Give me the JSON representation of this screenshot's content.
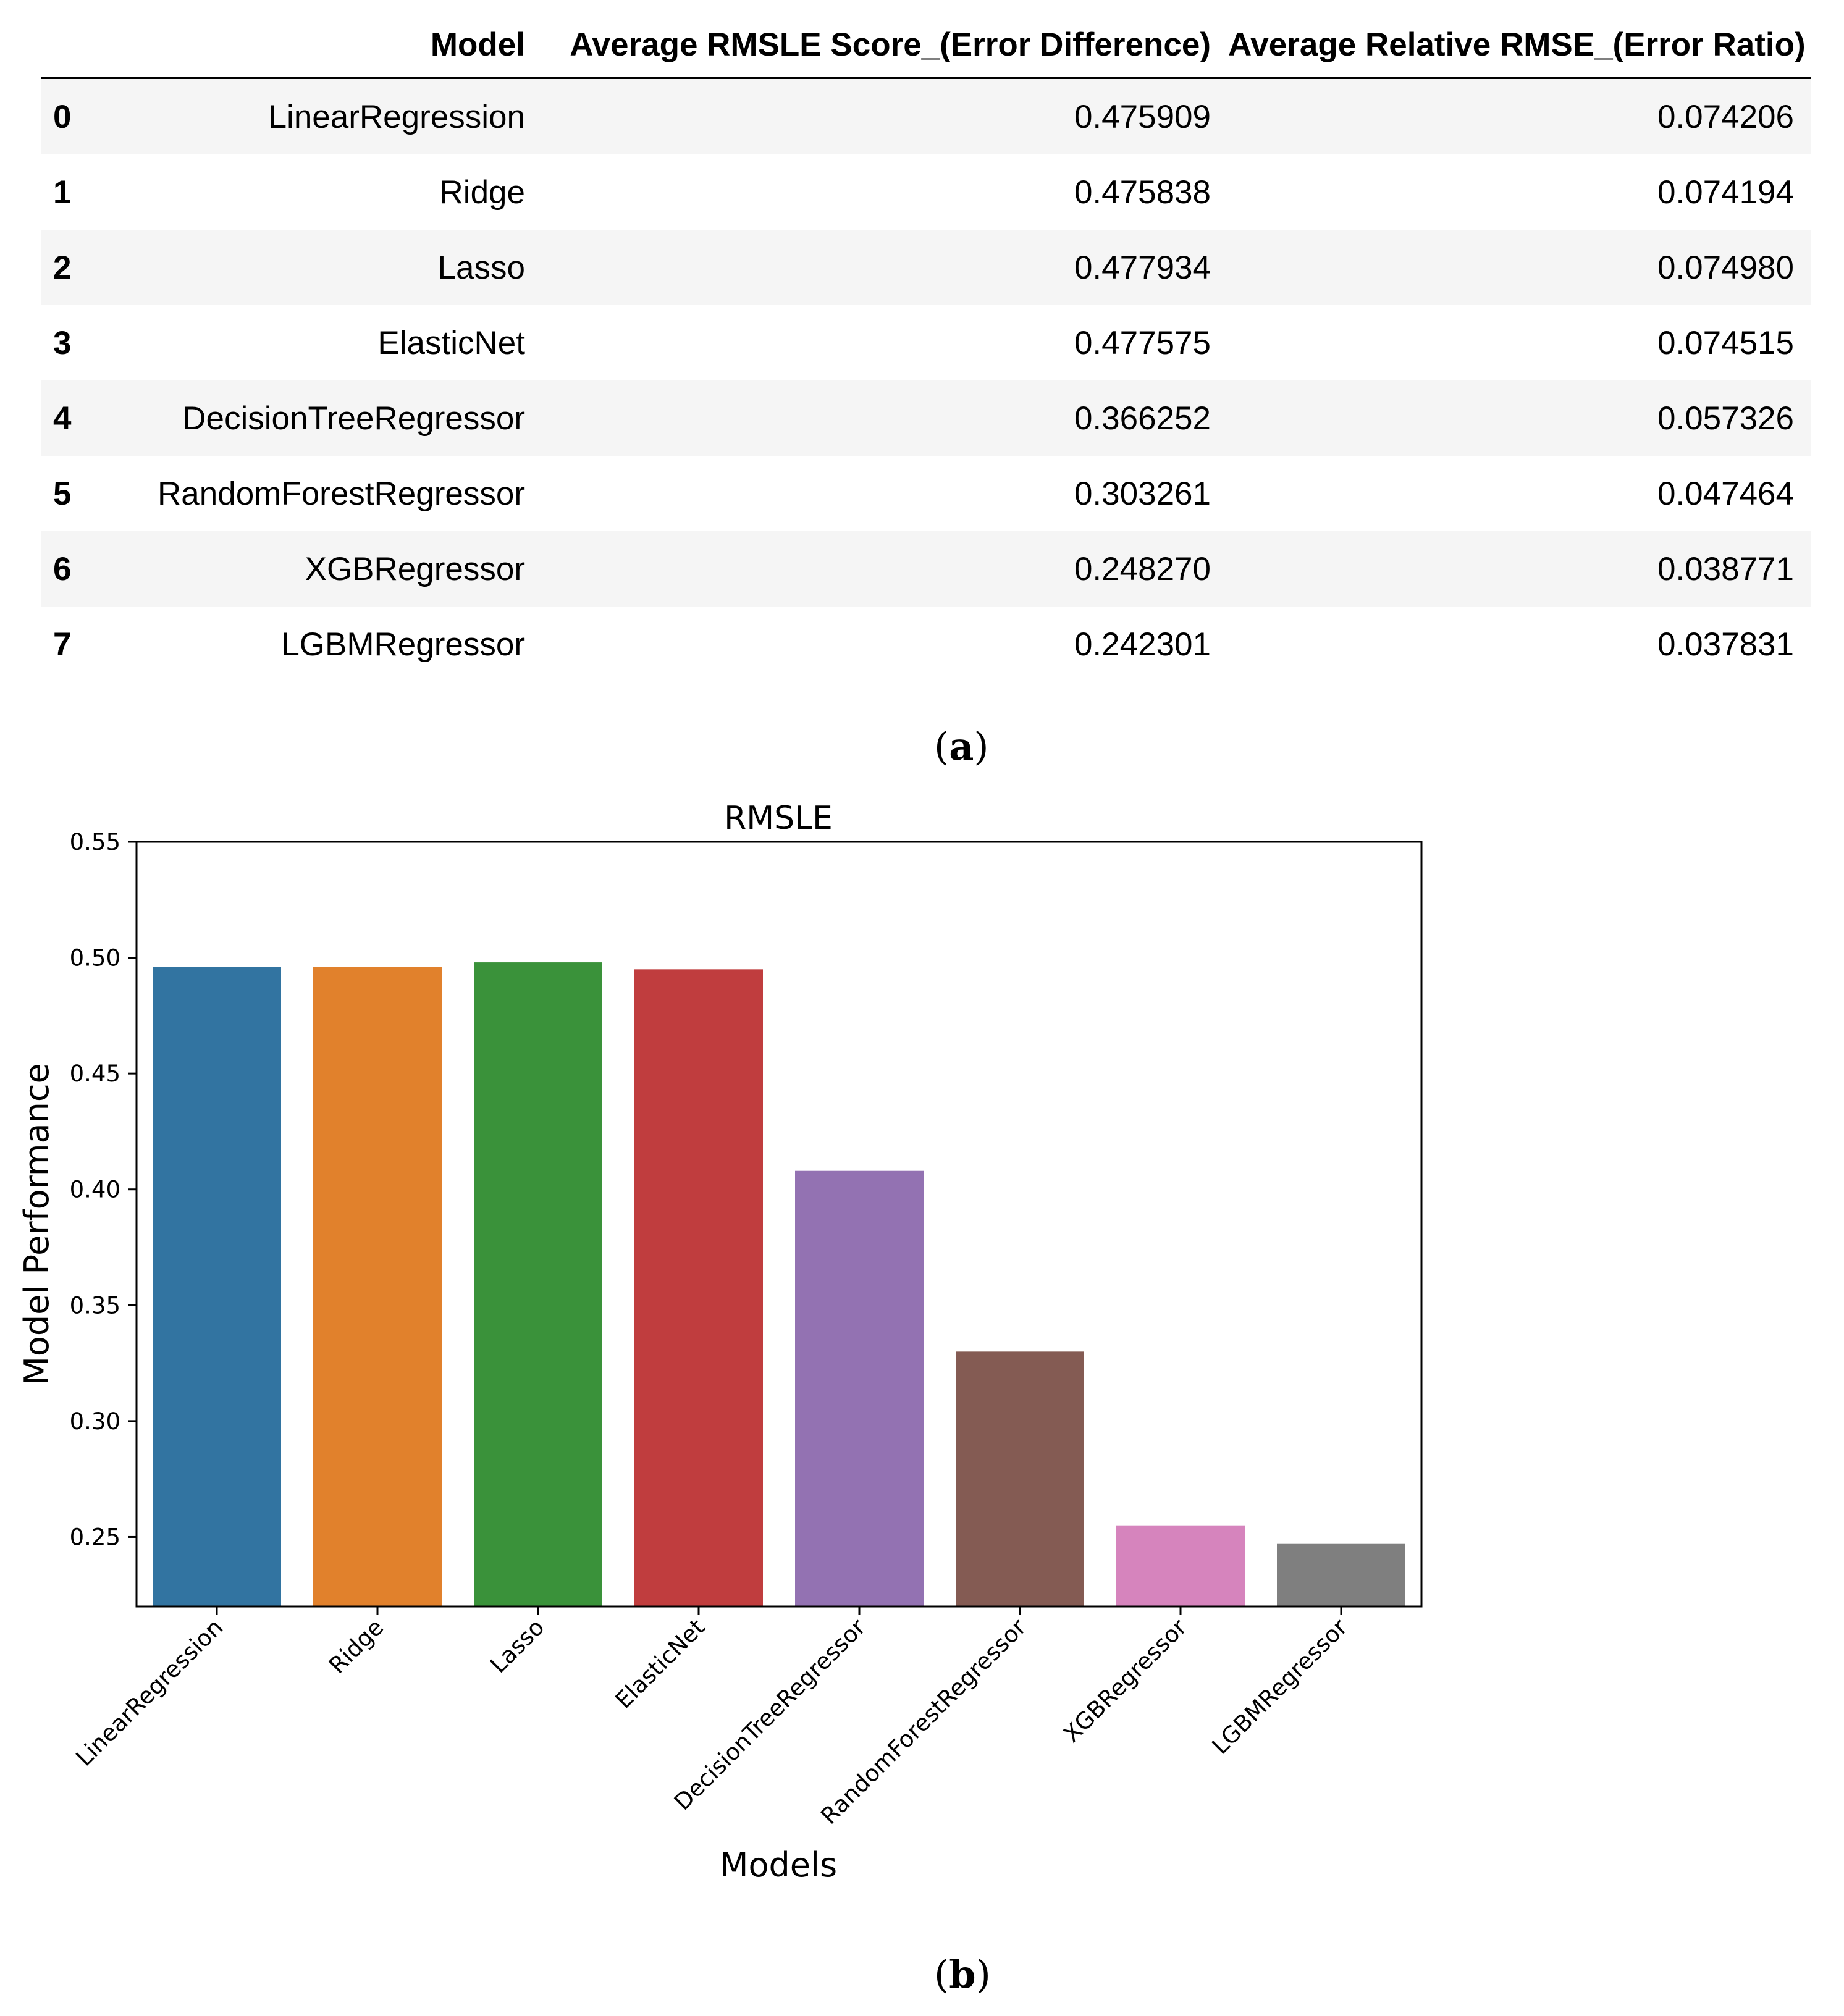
{
  "table": {
    "columns": [
      "",
      "Model",
      "Average RMSLE Score_(Error Difference)",
      "Average Relative RMSE_(Error Ratio)"
    ],
    "rows": [
      {
        "index": "0",
        "model": "LinearRegression",
        "rmsle": "0.475909",
        "ratio": "0.074206"
      },
      {
        "index": "1",
        "model": "Ridge",
        "rmsle": "0.475838",
        "ratio": "0.074194"
      },
      {
        "index": "2",
        "model": "Lasso",
        "rmsle": "0.477934",
        "ratio": "0.074980"
      },
      {
        "index": "3",
        "model": "ElasticNet",
        "rmsle": "0.477575",
        "ratio": "0.074515"
      },
      {
        "index": "4",
        "model": "DecisionTreeRegressor",
        "rmsle": "0.366252",
        "ratio": "0.057326"
      },
      {
        "index": "5",
        "model": "RandomForestRegressor",
        "rmsle": "0.303261",
        "ratio": "0.047464"
      },
      {
        "index": "6",
        "model": "XGBRegressor",
        "rmsle": "0.248270",
        "ratio": "0.038771"
      },
      {
        "index": "7",
        "model": "LGBMRegressor",
        "rmsle": "0.242301",
        "ratio": "0.037831"
      }
    ],
    "caption_letter": "a"
  },
  "chart_data": {
    "type": "bar",
    "title": "RMSLE",
    "xlabel": "Models",
    "ylabel": "Model Performance",
    "categories": [
      "LinearRegression",
      "Ridge",
      "Lasso",
      "ElasticNet",
      "DecisionTreeRegressor",
      "RandomForestRegressor",
      "XGBRegressor",
      "LGBMRegressor"
    ],
    "values": [
      0.496,
      0.496,
      0.498,
      0.495,
      0.408,
      0.33,
      0.255,
      0.247
    ],
    "colors": [
      "#3274a1",
      "#e1812c",
      "#3a923a",
      "#c03d3e",
      "#9372b2",
      "#845b53",
      "#d684bd",
      "#7f7f7f"
    ],
    "ylim": [
      0.22,
      0.55
    ],
    "yticks": [
      "0.25",
      "0.30",
      "0.35",
      "0.40",
      "0.45",
      "0.50",
      "0.55"
    ],
    "grid": false,
    "caption_letter": "b"
  }
}
